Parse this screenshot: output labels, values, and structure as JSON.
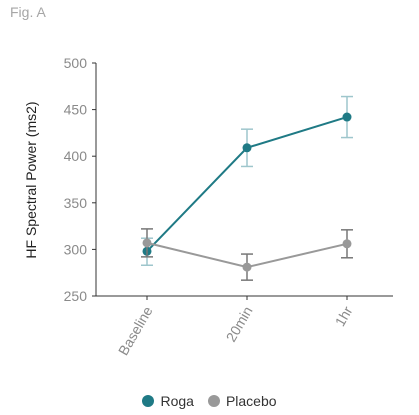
{
  "figure_label": "Fig. A",
  "chart_data": {
    "type": "line",
    "categories": [
      "Baseline",
      "20min",
      "1hr"
    ],
    "ylabel": "HF Spectral Power (ms2)",
    "xlabel": "",
    "ylim": [
      250,
      500
    ],
    "yticks": [
      250,
      300,
      350,
      400,
      450,
      500
    ],
    "grid": false,
    "legend_position": "bottom",
    "series": [
      {
        "name": "Roga",
        "color": "#1f7a85",
        "error_color": "#9ec6cc",
        "values": [
          298,
          409,
          442
        ],
        "error_low": [
          283,
          389,
          420
        ],
        "error_high": [
          312,
          429,
          464
        ]
      },
      {
        "name": "Placebo",
        "color": "#999999",
        "error_color": "#777777",
        "values": [
          307,
          281,
          306
        ],
        "error_low": [
          292,
          267,
          291
        ],
        "error_high": [
          322,
          295,
          321
        ]
      }
    ]
  }
}
